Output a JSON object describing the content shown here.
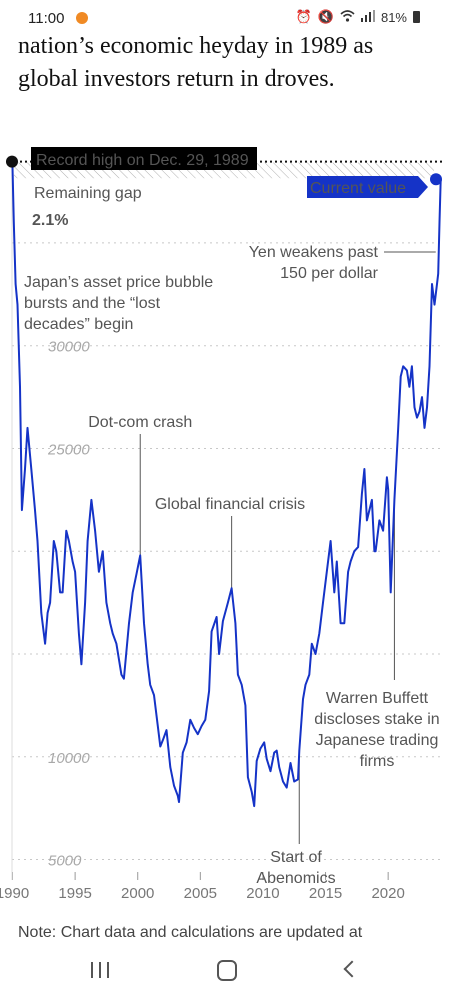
{
  "status_bar": {
    "time": "11:00",
    "battery": "81%",
    "icons": [
      "alarm-icon",
      "mute-icon",
      "wifi-icon",
      "signal-icon",
      "battery-icon"
    ]
  },
  "article": {
    "text": "nation’s economic heyday in 1989 as global investors return in droves."
  },
  "chart_data": {
    "type": "line",
    "title": "",
    "xlabel": "",
    "ylabel": "",
    "xlim": [
      1989.8,
      2024.3
    ],
    "ylim": [
      4200,
      40300
    ],
    "x_ticks": [
      "1990",
      "1995",
      "2000",
      "2005",
      "2010",
      "2015",
      "2020"
    ],
    "y_ticks": [
      "5000",
      "10000",
      "25000",
      "30000"
    ],
    "grid": "dotted horizontal lines",
    "line_color": "#1533c7",
    "record_high": {
      "label": "Record high on Dec. 29, 1989",
      "value": 38957
    },
    "current_value": {
      "label": "Current value",
      "value": 38100
    },
    "remaining_gap": {
      "label": "Remaining gap",
      "value": "2.1%"
    },
    "annotations": [
      {
        "text": [
          "Japan’s asset price bubble",
          "bursts and the “lost",
          "decades” begin"
        ]
      },
      {
        "text": [
          "Dot-com crash"
        ],
        "x": 2000.2
      },
      {
        "text": [
          "Global financial crisis"
        ],
        "x": 2007.5
      },
      {
        "text": [
          "Start of",
          "Abenomics"
        ],
        "x": 2012.9
      },
      {
        "text": [
          "Warren Buffett",
          "discloses stake in",
          "Japanese trading",
          "firms"
        ],
        "x": 2020.5
      },
      {
        "text": [
          "Yen weakens past",
          "150 per dollar"
        ],
        "x": 2023.8
      }
    ],
    "series": [
      {
        "x": [
          1989.99,
          1990.1,
          1990.25,
          1990.4,
          1990.6,
          1990.75,
          1991.0,
          1991.2,
          1991.5,
          1991.8,
          1992.0,
          1992.3,
          1992.6,
          1992.8,
          1993.0,
          1993.3,
          1993.5,
          1993.8,
          1994.0,
          1994.3,
          1994.5,
          1994.8,
          1995.0,
          1995.3,
          1995.5,
          1995.8,
          1996.0,
          1996.3,
          1996.6,
          1996.9,
          1997.2,
          1997.5,
          1997.8,
          1998.0,
          1998.3,
          1998.7,
          1998.9,
          1999.3,
          1999.6,
          1999.9,
          2000.2,
          2000.5,
          2000.8,
          2001.0,
          2001.3,
          2001.6,
          2001.8,
          2002.0,
          2002.3,
          2002.6,
          2002.9,
          2003.2,
          2003.3,
          2003.6,
          2003.9,
          2004.2,
          2004.5,
          2004.8,
          2005.1,
          2005.4,
          2005.7,
          2005.9,
          2006.3,
          2006.5,
          2006.8,
          2007.2,
          2007.5,
          2007.8,
          2008.0,
          2008.3,
          2008.6,
          2008.8,
          2009.1,
          2009.3,
          2009.5,
          2009.8,
          2010.1,
          2010.3,
          2010.6,
          2010.9,
          2011.1,
          2011.3,
          2011.6,
          2011.9,
          2012.2,
          2012.5,
          2012.8,
          2012.9,
          2013.2,
          2013.4,
          2013.7,
          2013.9,
          2014.2,
          2014.5,
          2014.8,
          2015.1,
          2015.4,
          2015.7,
          2015.9,
          2016.2,
          2016.5,
          2016.8,
          2017.0,
          2017.3,
          2017.6,
          2017.9,
          2018.1,
          2018.3,
          2018.7,
          2018.9,
          2019.0,
          2019.3,
          2019.6,
          2019.9,
          2020.0,
          2020.2,
          2020.5,
          2020.8,
          2021.0,
          2021.2,
          2021.5,
          2021.7,
          2021.9,
          2022.1,
          2022.3,
          2022.5,
          2022.7,
          2022.9,
          2023.1,
          2023.3,
          2023.5,
          2023.7,
          2023.9,
          2024.0,
          2024.1,
          2024.2
        ],
        "y": [
          38900,
          36000,
          33000,
          32000,
          28000,
          22000,
          24000,
          26000,
          24000,
          22000,
          20500,
          17000,
          15500,
          17000,
          17500,
          20500,
          20000,
          18000,
          18000,
          21000,
          20500,
          19500,
          19000,
          16000,
          14500,
          17500,
          20500,
          22500,
          21000,
          19000,
          20000,
          17500,
          16500,
          16000,
          15500,
          14000,
          13800,
          16500,
          18000,
          18900,
          19800,
          16500,
          14500,
          13500,
          13000,
          11500,
          10500,
          10800,
          11300,
          9500,
          8600,
          8100,
          7800,
          10200,
          10700,
          11800,
          11400,
          11100,
          11500,
          11800,
          13200,
          16100,
          16800,
          15000,
          16600,
          17500,
          18200,
          16500,
          14000,
          13500,
          12500,
          9000,
          8300,
          7600,
          9800,
          10400,
          10700,
          9900,
          9300,
          10200,
          10300,
          9500,
          8800,
          8500,
          9700,
          8800,
          8900,
          10300,
          12800,
          13500,
          14000,
          15500,
          15000,
          16000,
          17500,
          19000,
          20500,
          18000,
          19500,
          16500,
          16500,
          19000,
          19500,
          20000,
          20200,
          22800,
          24000,
          21500,
          22500,
          20000,
          20000,
          21500,
          21000,
          23600,
          23000,
          18000,
          22500,
          26000,
          28500,
          29000,
          28800,
          28000,
          29000,
          27000,
          26500,
          26800,
          27500,
          26000,
          27000,
          29000,
          33000,
          32000,
          33000,
          33500,
          36000,
          38100
        ]
      }
    ]
  },
  "note": {
    "text": "Note: Chart data and calculations are updated at"
  },
  "nav": {
    "icons": [
      "recent-apps-icon",
      "home-icon",
      "back-icon"
    ]
  }
}
